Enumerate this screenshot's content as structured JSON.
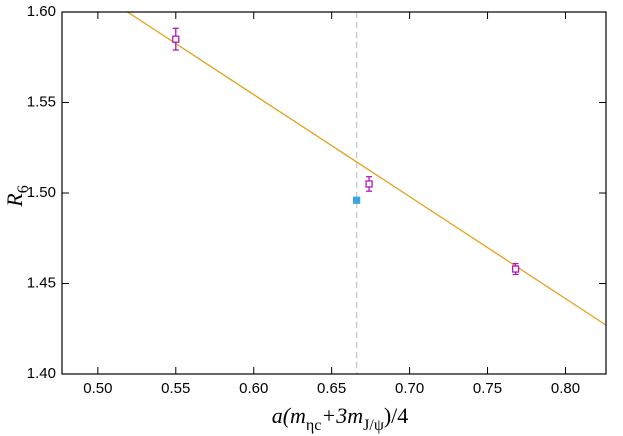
{
  "chart_data": {
    "type": "scatter",
    "xlabel": [
      "a(m",
      "η",
      "c",
      "+3m",
      "J/ψ",
      ")/4"
    ],
    "ylabel": [
      "R",
      "6"
    ],
    "xlim": [
      0.477,
      0.826
    ],
    "ylim": [
      1.4,
      1.6
    ],
    "xticks": [
      {
        "value": 0.5,
        "label": "0.50"
      },
      0.55,
      {
        "value": 0.6,
        "label": "0.60"
      },
      0.65,
      {
        "value": 0.7,
        "label": "0.70"
      },
      0.75,
      {
        "value": 0.8,
        "label": "0.80"
      }
    ],
    "yticks": [
      {
        "value": 1.4,
        "label": "1.40"
      },
      1.45,
      {
        "value": 1.5,
        "label": "1.50"
      },
      1.55,
      {
        "value": 1.6,
        "label": "1.60"
      }
    ],
    "vlines": [
      {
        "x": 0.666,
        "color": "#c8c8c8",
        "dashed": true
      }
    ],
    "series": [
      {
        "style": "line",
        "color": "#e3a21a",
        "x": [
          0.519,
          0.826
        ],
        "values": [
          1.6,
          1.427
        ]
      },
      {
        "style": "open-square",
        "color": "#b21ab8",
        "x": [
          0.55,
          0.674,
          0.768
        ],
        "values": [
          1.585,
          1.505,
          1.458
        ],
        "errors": [
          0.006,
          0.004,
          0.003
        ]
      },
      {
        "style": "filled-square",
        "color": "#3aa8dd",
        "x": [
          0.666
        ],
        "values": [
          1.496
        ]
      }
    ]
  }
}
